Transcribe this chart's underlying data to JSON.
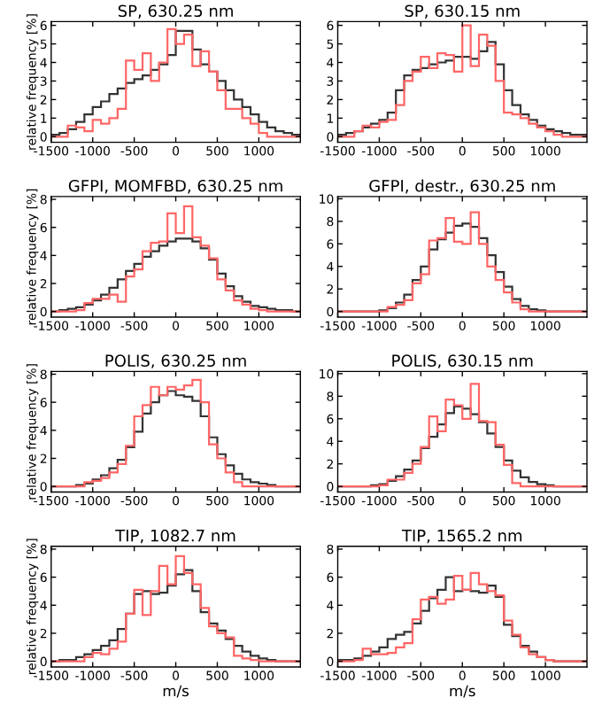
{
  "chart_data": [
    {
      "type": "histogram",
      "title": "SP, 630.25 nm",
      "ylabel": "relative frequency [%]",
      "xlim": [
        -1500,
        1500
      ],
      "ylim": [
        -0.3,
        6.2
      ],
      "xticks": [
        -1500,
        -1000,
        -500,
        0,
        500,
        1000
      ],
      "yticks": [
        0,
        1,
        2,
        3,
        4,
        5,
        6
      ],
      "bins": [
        -1500,
        -1400,
        -1300,
        -1200,
        -1100,
        -1000,
        -900,
        -800,
        -700,
        -600,
        -500,
        -400,
        -300,
        -200,
        -100,
        0,
        100,
        200,
        300,
        400,
        500,
        600,
        700,
        800,
        900,
        1000,
        1100,
        1200,
        1300,
        1400,
        1500
      ],
      "series": [
        {
          "color": "#333333",
          "values": [
            0.1,
            0.2,
            0.4,
            0.8,
            1.2,
            1.6,
            1.9,
            2.3,
            2.6,
            2.9,
            3.1,
            3.3,
            3.6,
            3.9,
            4.4,
            5.7,
            5.7,
            4.7,
            3.9,
            3.5,
            3.0,
            2.5,
            2.0,
            1.6,
            1.2,
            0.8,
            0.5,
            0.3,
            0.2,
            0.1
          ]
        },
        {
          "color": "#ff6666",
          "values": [
            0,
            0,
            0.6,
            0.5,
            0.3,
            0.9,
            0.7,
            1.0,
            1.5,
            4.1,
            3.6,
            4.5,
            3.0,
            4.0,
            5.8,
            5.0,
            5.5,
            3.8,
            4.6,
            3.5,
            2.5,
            1.5,
            1.5,
            1.0,
            0.7,
            0.2,
            0,
            0,
            0,
            0
          ]
        }
      ]
    },
    {
      "type": "histogram",
      "title": "SP, 630.15 nm",
      "xlim": [
        -1500,
        1500
      ],
      "ylim": [
        -0.3,
        6.2
      ],
      "xticks": [
        -1500,
        -1000,
        -500,
        0,
        500,
        1000
      ],
      "yticks": [
        0,
        1,
        2,
        3,
        4,
        5,
        6
      ],
      "bins": [
        -1500,
        -1400,
        -1300,
        -1200,
        -1100,
        -1000,
        -900,
        -800,
        -700,
        -600,
        -500,
        -400,
        -300,
        -200,
        -100,
        0,
        100,
        200,
        300,
        400,
        500,
        600,
        700,
        800,
        900,
        1000,
        1100,
        1200,
        1300,
        1400,
        1500
      ],
      "series": [
        {
          "color": "#333333",
          "values": [
            0.1,
            0.2,
            0.3,
            0.5,
            0.7,
            0.9,
            1.3,
            2.5,
            3.3,
            3.6,
            3.7,
            3.9,
            4.0,
            4.1,
            4.3,
            4.3,
            4.2,
            4.6,
            5.1,
            3.9,
            2.5,
            1.7,
            1.2,
            0.9,
            0.6,
            0.4,
            0.3,
            0.2,
            0.1,
            0.1
          ]
        },
        {
          "color": "#ff6666",
          "values": [
            0,
            0,
            0.3,
            0.6,
            0.5,
            0.8,
            0.9,
            1.7,
            3.0,
            3.5,
            4.3,
            3.7,
            4.5,
            4.4,
            3.5,
            6.0,
            3.8,
            5.5,
            4.9,
            3.0,
            1.3,
            1.2,
            1.0,
            0.7,
            0.5,
            0.3,
            0.1,
            0,
            0,
            0
          ]
        }
      ]
    },
    {
      "type": "histogram",
      "title": "GFPI, MOMFBD, 630.25 nm",
      "ylabel": "relative frequency [%]",
      "xlim": [
        -1500,
        1500
      ],
      "ylim": [
        -0.4,
        8.2
      ],
      "xticks": [
        -1500,
        -1000,
        -500,
        0,
        500,
        1000
      ],
      "yticks": [
        0,
        2,
        4,
        6,
        8
      ],
      "bins": [
        -1500,
        -1400,
        -1300,
        -1200,
        -1100,
        -1000,
        -900,
        -800,
        -700,
        -600,
        -500,
        -400,
        -300,
        -200,
        -100,
        0,
        100,
        200,
        300,
        400,
        500,
        600,
        700,
        800,
        900,
        1000,
        1100,
        1200,
        1300,
        1400,
        1500
      ],
      "series": [
        {
          "color": "#333333",
          "values": [
            0,
            0.1,
            0.2,
            0.3,
            0.5,
            0.8,
            1.2,
            1.7,
            2.3,
            2.9,
            3.4,
            3.9,
            4.3,
            4.7,
            5.0,
            5.2,
            5.2,
            5.0,
            4.5,
            3.7,
            2.7,
            1.8,
            1.1,
            0.7,
            0.4,
            0.3,
            0.2,
            0.1,
            0.1,
            0
          ]
        },
        {
          "color": "#ff6666",
          "values": [
            0,
            0,
            0,
            0.1,
            0.6,
            0.9,
            0.9,
            1.2,
            0.7,
            2.5,
            3.0,
            4.3,
            4.9,
            5.0,
            7.0,
            5.6,
            7.5,
            5.3,
            4.7,
            3.8,
            2.3,
            1.5,
            0.8,
            0.5,
            0.2,
            0.1,
            0,
            0,
            0,
            0
          ]
        }
      ]
    },
    {
      "type": "histogram",
      "title": "GFPI, destr., 630.25 nm",
      "xlim": [
        -1500,
        1500
      ],
      "ylim": [
        -0.5,
        10.2
      ],
      "xticks": [
        -1500,
        -1000,
        -500,
        0,
        500,
        1000
      ],
      "yticks": [
        0,
        2,
        4,
        6,
        8,
        10
      ],
      "bins": [
        -1500,
        -1400,
        -1300,
        -1200,
        -1100,
        -1000,
        -900,
        -800,
        -700,
        -600,
        -500,
        -400,
        -300,
        -200,
        -100,
        0,
        100,
        200,
        300,
        400,
        500,
        600,
        700,
        800,
        900,
        1000,
        1100,
        1200,
        1300,
        1400,
        1500
      ],
      "series": [
        {
          "color": "#333333",
          "values": [
            0,
            0,
            0,
            0,
            0,
            0.1,
            0.3,
            0.8,
            1.5,
            2.8,
            4.0,
            5.5,
            6.4,
            7.0,
            7.6,
            7.8,
            7.5,
            6.5,
            5.0,
            3.5,
            2.2,
            1.1,
            0.5,
            0.2,
            0.1,
            0,
            0,
            0,
            0,
            0
          ]
        },
        {
          "color": "#ff6666",
          "values": [
            0,
            0,
            0,
            0,
            0,
            0,
            0.4,
            0.6,
            1.0,
            2.5,
            3.3,
            6.3,
            6.5,
            8.3,
            6.2,
            6.0,
            8.8,
            6.0,
            4.0,
            2.8,
            1.7,
            0.8,
            0.2,
            0,
            0,
            0,
            0,
            0,
            0,
            0
          ]
        }
      ]
    },
    {
      "type": "histogram",
      "title": "POLIS, 630.25 nm",
      "ylabel": "relative frequency [%]",
      "xlim": [
        -1500,
        1500
      ],
      "ylim": [
        -0.4,
        8.2
      ],
      "xticks": [
        -1500,
        -1000,
        -500,
        0,
        500,
        1000
      ],
      "yticks": [
        0,
        2,
        4,
        6,
        8
      ],
      "bins": [
        -1500,
        -1400,
        -1300,
        -1200,
        -1100,
        -1000,
        -900,
        -800,
        -700,
        -600,
        -500,
        -400,
        -300,
        -200,
        -100,
        0,
        100,
        200,
        300,
        400,
        500,
        600,
        700,
        800,
        900,
        1000,
        1100,
        1200,
        1300,
        1400,
        1500
      ],
      "series": [
        {
          "color": "#333333",
          "values": [
            0,
            0,
            0,
            0.1,
            0.2,
            0.5,
            0.8,
            1.3,
            1.9,
            2.8,
            3.9,
            5.2,
            6.0,
            6.5,
            6.8,
            6.5,
            6.4,
            6.1,
            5.0,
            3.5,
            2.3,
            1.5,
            0.9,
            0.5,
            0.3,
            0.2,
            0.1,
            0,
            0,
            0
          ]
        },
        {
          "color": "#ff6666",
          "values": [
            0,
            0,
            0,
            0,
            0.3,
            0.4,
            0.6,
            1.0,
            1.6,
            2.9,
            5.0,
            5.8,
            7.1,
            6.5,
            7.1,
            6.9,
            7.2,
            7.6,
            6.0,
            3.0,
            2.0,
            1.0,
            0.3,
            0,
            0,
            0,
            0,
            0,
            0,
            0
          ]
        }
      ]
    },
    {
      "type": "histogram",
      "title": "POLIS, 630.15 nm",
      "xlim": [
        -1500,
        1500
      ],
      "ylim": [
        -0.5,
        10.2
      ],
      "xticks": [
        -1500,
        -1000,
        -500,
        0,
        500,
        1000
      ],
      "yticks": [
        0,
        2,
        4,
        6,
        8,
        10
      ],
      "bins": [
        -1500,
        -1400,
        -1300,
        -1200,
        -1100,
        -1000,
        -900,
        -800,
        -700,
        -600,
        -500,
        -400,
        -300,
        -200,
        -100,
        0,
        100,
        200,
        300,
        400,
        500,
        600,
        700,
        800,
        900,
        1000,
        1100,
        1200,
        1300,
        1400,
        1500
      ],
      "series": [
        {
          "color": "#333333",
          "values": [
            0,
            0,
            0,
            0,
            0.1,
            0.2,
            0.5,
            0.9,
            1.5,
            2.3,
            3.4,
            4.4,
            5.5,
            6.5,
            7.1,
            6.9,
            6.4,
            5.7,
            4.7,
            3.5,
            2.3,
            1.4,
            0.8,
            0.4,
            0.2,
            0.1,
            0,
            0,
            0,
            0
          ]
        },
        {
          "color": "#ff6666",
          "values": [
            0,
            0,
            0,
            0,
            0,
            0.1,
            0.6,
            0.6,
            1.2,
            2.0,
            3.5,
            6.2,
            4.9,
            7.7,
            7.2,
            6.0,
            9.1,
            5.8,
            5.7,
            3.7,
            1.9,
            0.3,
            0,
            0,
            0,
            0,
            0,
            0,
            0,
            0
          ]
        }
      ]
    },
    {
      "type": "histogram",
      "title": "TIP, 1082.7 nm",
      "xlabel": "m/s",
      "ylabel": "relative frequency [%]",
      "xlim": [
        -1500,
        1500
      ],
      "ylim": [
        -0.4,
        8.2
      ],
      "xticks": [
        -1500,
        -1000,
        -500,
        0,
        500,
        1000
      ],
      "yticks": [
        0,
        2,
        4,
        6,
        8
      ],
      "bins": [
        -1500,
        -1400,
        -1300,
        -1200,
        -1100,
        -1000,
        -900,
        -800,
        -700,
        -600,
        -500,
        -400,
        -300,
        -200,
        -100,
        0,
        100,
        200,
        300,
        400,
        500,
        600,
        700,
        800,
        900,
        1000,
        1100,
        1200,
        1300,
        1400,
        1500
      ],
      "series": [
        {
          "color": "#333333",
          "values": [
            0,
            0.1,
            0.1,
            0.3,
            0.5,
            0.8,
            1.1,
            1.5,
            2.3,
            3.4,
            4.8,
            5.0,
            4.8,
            4.9,
            5.4,
            6.2,
            6.5,
            5.0,
            3.5,
            2.7,
            2.2,
            1.6,
            1.1,
            0.7,
            0.4,
            0.2,
            0.1,
            0,
            0,
            0
          ]
        },
        {
          "color": "#ff6666",
          "values": [
            0,
            0,
            0,
            0,
            0.3,
            0.6,
            0.5,
            0.9,
            1.4,
            3.4,
            5.1,
            3.3,
            5.0,
            6.8,
            5.5,
            7.5,
            6.3,
            5.5,
            3.8,
            2.5,
            2.0,
            1.7,
            0.4,
            0.2,
            0.1,
            0,
            0,
            0,
            0,
            0
          ]
        }
      ]
    },
    {
      "type": "histogram",
      "title": "TIP, 1565.2 nm",
      "xlabel": "m/s",
      "xlim": [
        -1500,
        1500
      ],
      "ylim": [
        -0.4,
        8.2
      ],
      "xticks": [
        -1500,
        -1000,
        -500,
        0,
        500,
        1000
      ],
      "yticks": [
        0,
        2,
        4,
        6,
        8
      ],
      "bins": [
        -1500,
        -1400,
        -1300,
        -1200,
        -1100,
        -1000,
        -900,
        -800,
        -700,
        -600,
        -500,
        -400,
        -300,
        -200,
        -100,
        0,
        100,
        200,
        300,
        400,
        500,
        600,
        700,
        800,
        900,
        1000,
        1100,
        1200,
        1300,
        1400,
        1500
      ],
      "series": [
        {
          "color": "#333333",
          "values": [
            0.1,
            0.1,
            0.2,
            0.4,
            0.7,
            1.0,
            1.6,
            1.9,
            2.1,
            2.7,
            3.6,
            4.5,
            5.1,
            6.0,
            5.0,
            5.1,
            5.0,
            4.9,
            5.4,
            4.6,
            2.6,
            1.8,
            1.1,
            0.7,
            0.3,
            0.1,
            0,
            0,
            0,
            0
          ]
        },
        {
          "color": "#ff6666",
          "values": [
            0,
            0,
            0.1,
            0.9,
            0.5,
            0.5,
            0.6,
            1.0,
            1.3,
            3.0,
            4.4,
            4.6,
            4.1,
            4.4,
            6.1,
            5.1,
            6.3,
            5.5,
            5.0,
            4.7,
            2.9,
            1.9,
            1.0,
            0.5,
            0.3,
            0.1,
            0,
            0,
            0,
            0
          ]
        }
      ]
    }
  ]
}
